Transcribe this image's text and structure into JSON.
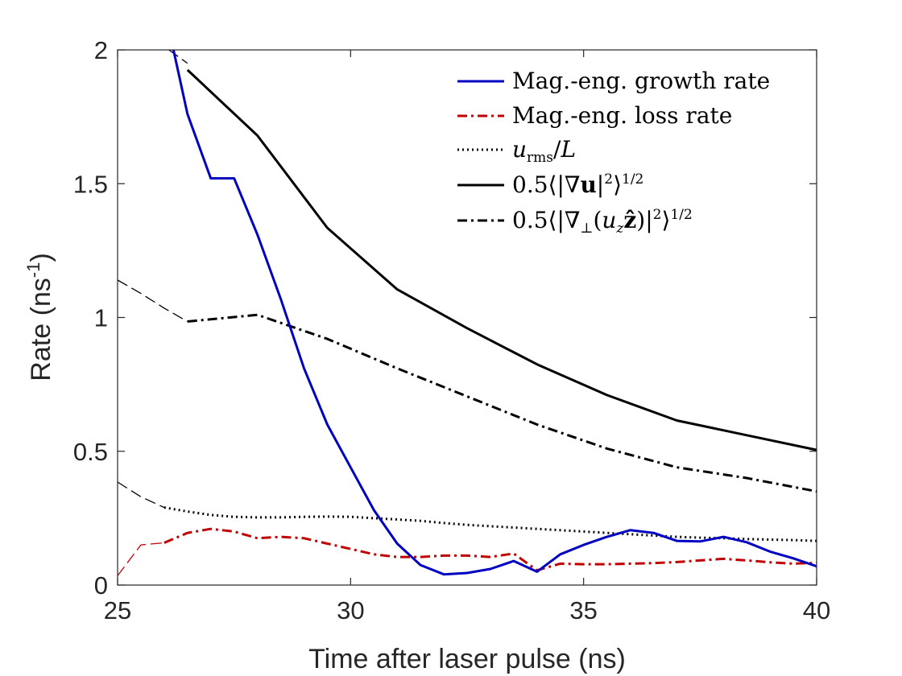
{
  "chart_data": {
    "type": "line",
    "xlabel": "Time after laser pulse (ns)",
    "ylabel_main": "Rate (ns",
    "ylabel_sup": "-1",
    "ylabel_close": ")",
    "xlim": [
      25,
      40
    ],
    "ylim": [
      0,
      2
    ],
    "xticks": [
      25,
      30,
      35,
      40
    ],
    "xtick_labels": [
      "25",
      "30",
      "35",
      "40"
    ],
    "yticks": [
      0,
      0.5,
      1,
      1.5,
      2
    ],
    "ytick_labels": [
      "0",
      "0.5",
      "1",
      "1.5",
      "2"
    ],
    "legend_position": "top-right",
    "series": [
      {
        "name": "Mag.-eng. growth rate",
        "legend_label": "Mag.-eng. growth rate",
        "color": "#0000c0",
        "style": "solid",
        "x": [
          26.2,
          26.5,
          27.0,
          27.5,
          28.0,
          28.5,
          29.0,
          29.5,
          30.0,
          30.5,
          31.0,
          31.5,
          32.0,
          32.5,
          33.0,
          33.5,
          34.0,
          34.5,
          35.0,
          35.5,
          36.0,
          36.5,
          37.0,
          37.5,
          38.0,
          38.5,
          39.0,
          39.5,
          40.0
        ],
        "y": [
          2.0,
          1.76,
          1.52,
          1.52,
          1.31,
          1.07,
          0.81,
          0.6,
          0.44,
          0.28,
          0.155,
          0.075,
          0.04,
          0.045,
          0.06,
          0.09,
          0.05,
          0.115,
          0.15,
          0.18,
          0.205,
          0.195,
          0.165,
          0.163,
          0.18,
          0.16,
          0.125,
          0.1,
          0.07
        ]
      },
      {
        "name": "Mag.-eng. loss rate",
        "legend_label": "Mag.-eng. loss rate",
        "color": "#c00000",
        "style": "dashdot",
        "x": [
          26.0,
          26.5,
          27.0,
          27.5,
          28.0,
          28.5,
          29.0,
          29.5,
          30.0,
          30.5,
          31.0,
          31.5,
          32.0,
          32.5,
          33.0,
          33.5,
          34.0,
          34.5,
          35.0,
          35.5,
          36.0,
          36.5,
          37.0,
          37.5,
          38.0,
          38.5,
          39.0,
          39.5,
          40.0
        ],
        "y": [
          0.158,
          0.195,
          0.21,
          0.2,
          0.175,
          0.18,
          0.175,
          0.155,
          0.135,
          0.115,
          0.105,
          0.105,
          0.11,
          0.11,
          0.105,
          0.118,
          0.055,
          0.08,
          0.078,
          0.078,
          0.08,
          0.082,
          0.086,
          0.092,
          0.098,
          0.092,
          0.085,
          0.08,
          0.083
        ]
      },
      {
        "name": "u_rms/L",
        "legend_label": "u_rms/L",
        "color": "#000000",
        "style": "dotted",
        "x": [
          26.0,
          26.5,
          27.0,
          27.5,
          28.0,
          28.5,
          29.0,
          29.5,
          30.0,
          30.5,
          31.0,
          31.5,
          32.0,
          32.5,
          33.0,
          33.5,
          34.0,
          34.5,
          35.0,
          35.5,
          36.0,
          36.5,
          37.0,
          37.5,
          38.0,
          38.5,
          39.0,
          39.5,
          40.0
        ],
        "y": [
          0.29,
          0.275,
          0.262,
          0.255,
          0.253,
          0.253,
          0.255,
          0.256,
          0.255,
          0.25,
          0.245,
          0.24,
          0.232,
          0.225,
          0.22,
          0.215,
          0.21,
          0.205,
          0.2,
          0.195,
          0.19,
          0.185,
          0.18,
          0.177,
          0.175,
          0.172,
          0.17,
          0.168,
          0.165
        ]
      },
      {
        "name": "0.5<|grad u|^2>^(1/2)",
        "legend_label": "0.5<|grad u|^2>^(1/2)",
        "color": "#000000",
        "style": "solid",
        "x": [
          26.5,
          28.0,
          29.5,
          31.0,
          32.5,
          34.0,
          35.5,
          37.0,
          38.5,
          40.0
        ],
        "y": [
          1.925,
          1.68,
          1.335,
          1.105,
          0.96,
          0.825,
          0.71,
          0.615,
          0.56,
          0.505
        ]
      },
      {
        "name": "0.5<|grad_perp(u_z z)|^2>^(1/2)",
        "legend_label": "0.5<|grad_perp(u_z z)|^2>^(1/2)",
        "color": "#000000",
        "style": "dashdot",
        "x": [
          26.5,
          28.0,
          29.5,
          31.0,
          32.5,
          34.0,
          35.5,
          37.0,
          38.5,
          40.0
        ],
        "y": [
          0.985,
          1.01,
          0.92,
          0.81,
          0.705,
          0.6,
          0.51,
          0.44,
          0.4,
          0.35
        ]
      },
      {
        "name": "extrapolation-upper",
        "color": "#000000",
        "style": "thin-dashed",
        "x": [
          25.0,
          25.5,
          26.0,
          26.5
        ],
        "y": [
          1.14,
          1.09,
          1.035,
          0.985
        ]
      },
      {
        "name": "extrapolation-lower",
        "color": "#000000",
        "style": "thin-dashed",
        "x": [
          25.0,
          25.5,
          26.0
        ],
        "y": [
          0.385,
          0.33,
          0.29
        ]
      },
      {
        "name": "extrapolation-top",
        "color": "#000000",
        "style": "thin-dashed",
        "x": [
          26.1,
          26.5
        ],
        "y": [
          2.0,
          1.95
        ]
      },
      {
        "name": "extrapolation-loss",
        "color": "#c00000",
        "style": "thin-dashed",
        "x": [
          25.0,
          25.5,
          26.0
        ],
        "y": [
          0.035,
          0.15,
          0.158
        ]
      }
    ]
  }
}
